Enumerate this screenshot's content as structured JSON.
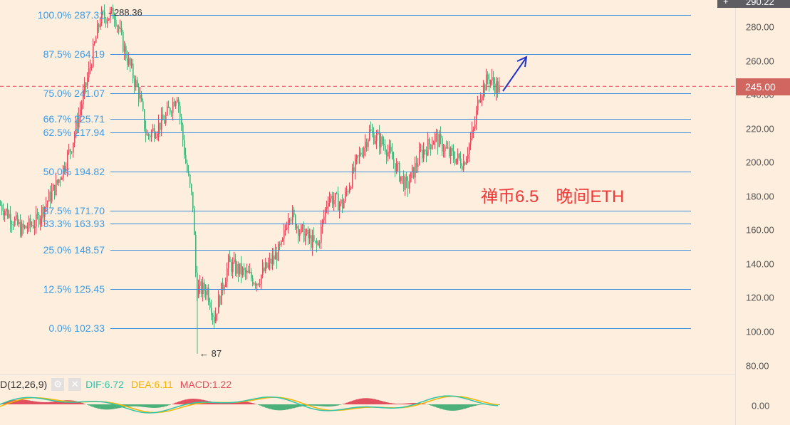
{
  "fib_levels": [
    {
      "pct": "100.0%",
      "price": "287.31",
      "value": 287.31
    },
    {
      "pct": "87.5%",
      "price": "264.19",
      "value": 264.19
    },
    {
      "pct": "75.0%",
      "price": "241.07",
      "value": 241.07
    },
    {
      "pct": "66.7%",
      "price": "225.71",
      "value": 225.71
    },
    {
      "pct": "62.5%",
      "price": "217.94",
      "value": 217.94
    },
    {
      "pct": "50.0%",
      "price": "194.82",
      "value": 194.82
    },
    {
      "pct": "37.5%",
      "price": "171.70",
      "value": 171.7
    },
    {
      "pct": "33.3%",
      "price": "163.93",
      "value": 163.93
    },
    {
      "pct": "25.0%",
      "price": "148.57",
      "value": 148.57
    },
    {
      "pct": "12.5%",
      "price": "125.45",
      "value": 125.45
    },
    {
      "pct": "0.0%",
      "price": "102.33",
      "value": 102.33
    }
  ],
  "high_marker": "- 288.36",
  "low_marker": "← 87",
  "price_axis": [
    "280.00",
    "260.00",
    "240.00",
    "220.00",
    "200.00",
    "180.00",
    "160.00",
    "140.00",
    "120.00",
    "100.00",
    "80.00"
  ],
  "top_price_partial": "290.22",
  "current_price": {
    "label": "245.00",
    "value": 245,
    "color": "#d0665f"
  },
  "annotation": "禅币6.5　晚间ETH",
  "macd": {
    "name": "D(12,26,9)",
    "dif": "DIF:6.72",
    "dea": "DEA:6.11",
    "macd": "MACD:1.22",
    "zero": "0.00"
  },
  "colors": {
    "up": "#e0505e",
    "down": "#4bb07a",
    "fib": "#3d8fe0",
    "dif": "#2ec4a9",
    "dea": "#f5b400"
  }
}
